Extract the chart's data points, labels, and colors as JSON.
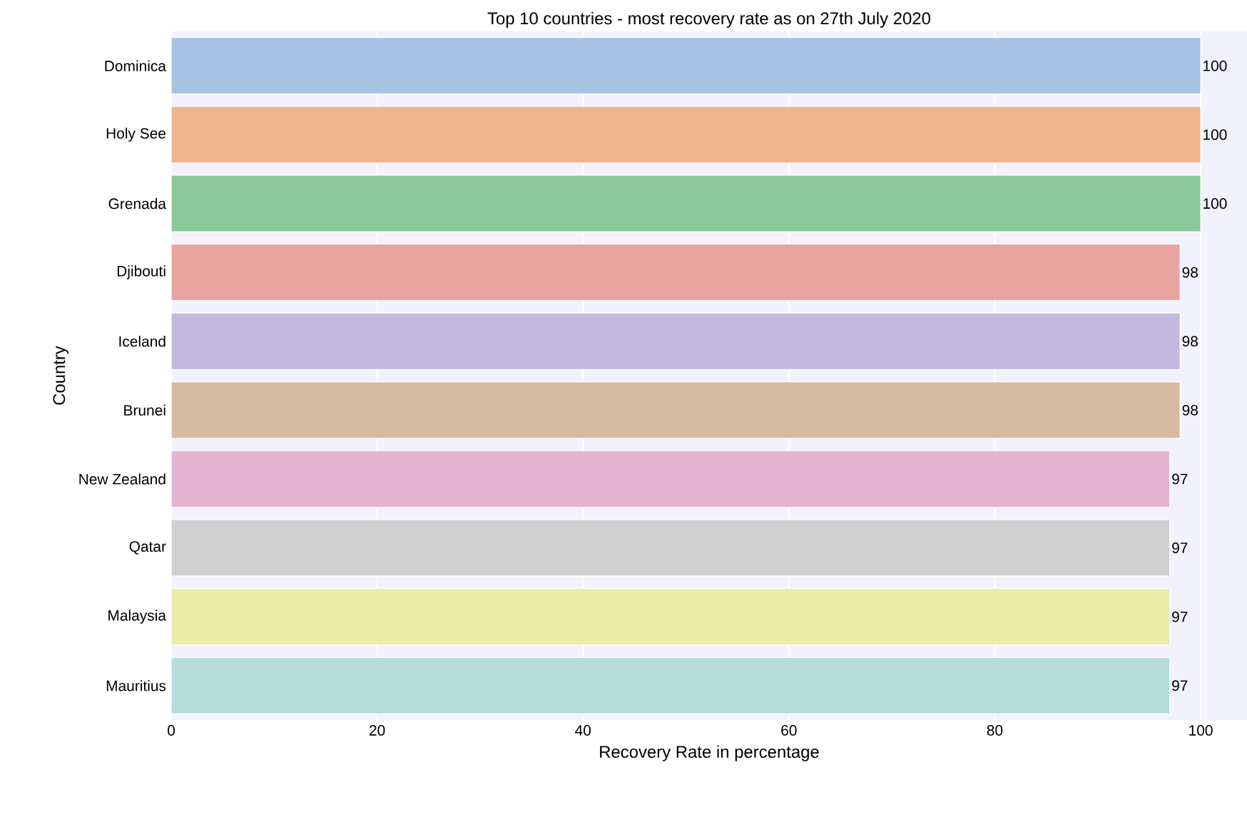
{
  "chart_data": {
    "type": "bar",
    "orientation": "horizontal",
    "title": "Top 10 countries - most recovery rate as on 27th July 2020",
    "xlabel": "Recovery Rate in percentage",
    "ylabel": "Country",
    "categories": [
      "Dominica",
      "Holy See",
      "Grenada",
      "Djibouti",
      "Iceland",
      "Brunei",
      "New Zealand",
      "Qatar",
      "Malaysia",
      "Mauritius"
    ],
    "values": [
      100,
      100,
      100,
      98,
      98,
      98,
      97,
      97,
      97,
      97
    ],
    "colors": [
      "#a6c3e3",
      "#efb58f",
      "#8ac89b",
      "#e9a3a0",
      "#c3b8de",
      "#d6bba2",
      "#e3b5d3",
      "#d0d0d0",
      "#ebebaa",
      "#b6dcdc"
    ],
    "xlim": [
      0,
      104.5
    ],
    "xticks": [
      0,
      20,
      40,
      60,
      80,
      100
    ],
    "grid": "x",
    "data_labels": true
  }
}
